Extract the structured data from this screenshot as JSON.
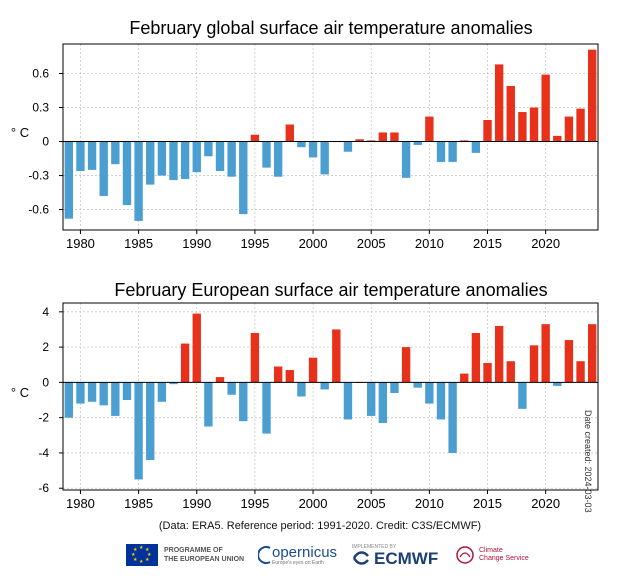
{
  "chart_data": [
    {
      "type": "bar",
      "title": "February global surface air temperature anomalies",
      "ylabel": "° C",
      "ylim": [
        -0.78,
        0.86
      ],
      "yticks": [
        0.6,
        0.3,
        0,
        -0.3,
        -0.6
      ],
      "ytick_labels": [
        "0.6",
        "0.3",
        "0",
        "-0.3",
        "-0.6"
      ],
      "xticks": [
        1980,
        1985,
        1990,
        1995,
        2000,
        2005,
        2010,
        2015,
        2020
      ],
      "grid": true,
      "colors": {
        "positive": "#e8311a",
        "negative": "#4a9fd0"
      },
      "x": [
        1979,
        1980,
        1981,
        1982,
        1983,
        1984,
        1985,
        1986,
        1987,
        1988,
        1989,
        1990,
        1991,
        1992,
        1993,
        1994,
        1995,
        1996,
        1997,
        1998,
        1999,
        2000,
        2001,
        2002,
        2003,
        2004,
        2005,
        2006,
        2007,
        2008,
        2009,
        2010,
        2011,
        2012,
        2013,
        2014,
        2015,
        2016,
        2017,
        2018,
        2019,
        2020,
        2021,
        2022,
        2023,
        2024
      ],
      "values": [
        -0.68,
        -0.26,
        -0.25,
        -0.48,
        -0.2,
        -0.56,
        -0.7,
        -0.38,
        -0.3,
        -0.34,
        -0.33,
        -0.27,
        -0.13,
        -0.26,
        -0.31,
        -0.64,
        0.06,
        -0.23,
        -0.31,
        0.15,
        -0.05,
        -0.14,
        -0.29,
        0.0,
        -0.09,
        0.02,
        0.01,
        0.08,
        0.08,
        -0.32,
        -0.03,
        0.22,
        -0.18,
        -0.18,
        0.01,
        -0.1,
        0.19,
        0.68,
        0.49,
        0.26,
        0.3,
        0.59,
        0.05,
        0.22,
        0.29,
        0.81
      ]
    },
    {
      "type": "bar",
      "title": "February European surface air temperature anomalies",
      "ylabel": "° C",
      "ylim": [
        -6.1,
        4.5
      ],
      "yticks": [
        4,
        2,
        0,
        -2,
        -4,
        -6
      ],
      "ytick_labels": [
        "4",
        "2",
        "0",
        "-2",
        "-4",
        "-6"
      ],
      "xticks": [
        1980,
        1985,
        1990,
        1995,
        2000,
        2005,
        2010,
        2015,
        2020
      ],
      "grid": true,
      "colors": {
        "positive": "#e8311a",
        "negative": "#4a9fd0"
      },
      "x": [
        1979,
        1980,
        1981,
        1982,
        1983,
        1984,
        1985,
        1986,
        1987,
        1988,
        1989,
        1990,
        1991,
        1992,
        1993,
        1994,
        1995,
        1996,
        1997,
        1998,
        1999,
        2000,
        2001,
        2002,
        2003,
        2004,
        2005,
        2006,
        2007,
        2008,
        2009,
        2010,
        2011,
        2012,
        2013,
        2014,
        2015,
        2016,
        2017,
        2018,
        2019,
        2020,
        2021,
        2022,
        2023,
        2024
      ],
      "values": [
        -2.0,
        -1.2,
        -1.1,
        -1.3,
        -1.9,
        -1.0,
        -5.5,
        -4.4,
        -1.1,
        -0.1,
        2.2,
        3.9,
        -2.5,
        0.3,
        -0.7,
        -2.2,
        2.8,
        -2.9,
        0.9,
        0.7,
        -0.8,
        1.4,
        -0.4,
        3.0,
        -2.1,
        0.0,
        -1.9,
        -2.3,
        -0.6,
        2.0,
        -0.3,
        -1.2,
        -2.1,
        -4.0,
        0.5,
        2.8,
        1.1,
        3.2,
        1.2,
        -1.5,
        2.1,
        3.3,
        -0.2,
        2.4,
        1.2,
        3.3
      ]
    }
  ],
  "footer": {
    "credit": "(Data: ERA5.  Reference period: 1991-2020.  Credit: C3S/ECMWF)",
    "date_created": "Date created: 2024-03-03"
  },
  "logos": {
    "eu_line1": "PROGRAMME OF",
    "eu_line2": "THE EUROPEAN UNION",
    "copernicus": "opernicus",
    "copernicus_sub": "Europe's eyes on Earth",
    "ecmwf_small": "IMPLEMENTED BY",
    "ecmwf": "ECMWF",
    "c3s_line1": "Climate",
    "c3s_line2": "Change Service"
  }
}
